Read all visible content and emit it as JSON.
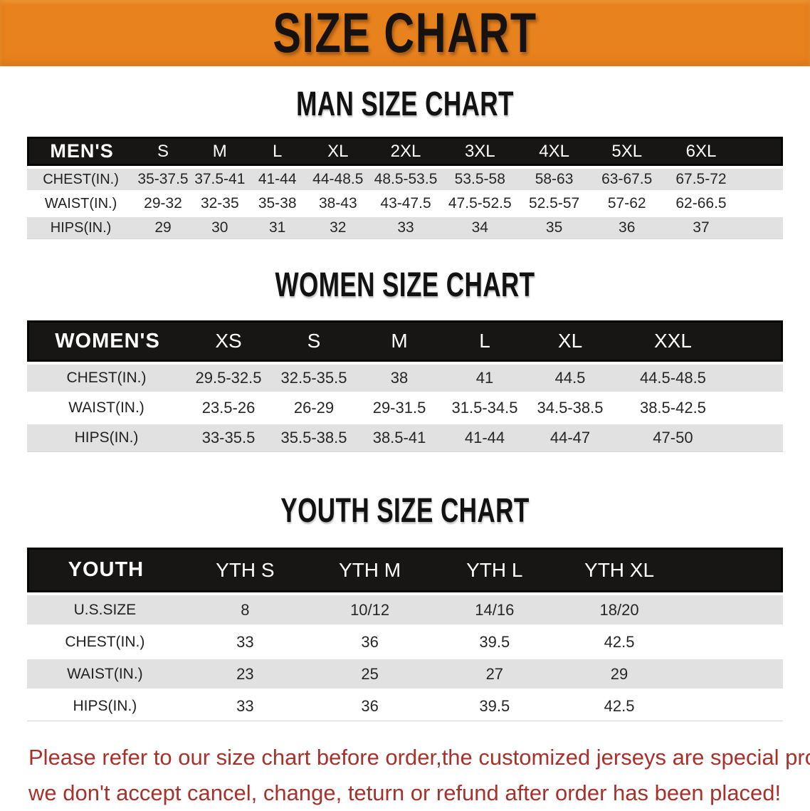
{
  "banner": {
    "title": "SIZE CHART",
    "bg_color": "#E8821D",
    "text_color": "#15120f"
  },
  "colors": {
    "header_bar": "#171614",
    "row_shade": "#E1E1E1",
    "note_red": "#A8322B"
  },
  "sections": [
    {
      "id": "men",
      "heading": "MAN SIZE CHART",
      "group_label": "MEN'S",
      "columns": [
        "S",
        "M",
        "L",
        "XL",
        "2XL",
        "3XL",
        "4XL",
        "5XL",
        "6XL"
      ],
      "rows": [
        {
          "label": "CHEST(IN.)",
          "values": [
            "35-37.5",
            "37.5-41",
            "41-44",
            "44-48.5",
            "48.5-53.5",
            "53.5-58",
            "58-63",
            "63-67.5",
            "67.5-72"
          ]
        },
        {
          "label": "WAIST(IN.)",
          "values": [
            "29-32",
            "32-35",
            "35-38",
            "38-43",
            "43-47.5",
            "47.5-52.5",
            "52.5-57",
            "57-62",
            "62-66.5"
          ]
        },
        {
          "label": "HIPS(IN.)",
          "values": [
            "29",
            "30",
            "31",
            "32",
            "33",
            "34",
            "35",
            "36",
            "37"
          ]
        }
      ]
    },
    {
      "id": "women",
      "heading": "WOMEN SIZE CHART",
      "group_label": "WOMEN'S",
      "columns": [
        "XS",
        "S",
        "M",
        "L",
        "XL",
        "XXL"
      ],
      "rows": [
        {
          "label": "CHEST(IN.)",
          "values": [
            "29.5-32.5",
            "32.5-35.5",
            "38",
            "41",
            "44.5",
            "44.5-48.5"
          ]
        },
        {
          "label": "WAIST(IN.)",
          "values": [
            "23.5-26",
            "26-29",
            "29-31.5",
            "31.5-34.5",
            "34.5-38.5",
            "38.5-42.5"
          ]
        },
        {
          "label": "HIPS(IN.)",
          "values": [
            "33-35.5",
            "35.5-38.5",
            "38.5-41",
            "41-44",
            "44-47",
            "47-50"
          ]
        }
      ]
    },
    {
      "id": "youth",
      "heading": "YOUTH SIZE CHART",
      "group_label": "YOUTH",
      "columns": [
        "YTH S",
        "YTH M",
        "YTH L",
        "YTH XL"
      ],
      "rows": [
        {
          "label": "U.S.SIZE",
          "values": [
            "8",
            "10/12",
            "14/16",
            "18/20"
          ]
        },
        {
          "label": "CHEST(IN.)",
          "values": [
            "33",
            "36",
            "39.5",
            "42.5"
          ]
        },
        {
          "label": "WAIST(IN.)",
          "values": [
            "23",
            "25",
            "27",
            "29"
          ]
        },
        {
          "label": "HIPS(IN.)",
          "values": [
            "33",
            "36",
            "39.5",
            "42.5"
          ]
        }
      ]
    }
  ],
  "footer": {
    "line1": "Please refer to our size chart before order,the customized jerseys are special products,",
    "line2": "we don't accept cancel, change, teturn or refund after order has been placed!"
  }
}
